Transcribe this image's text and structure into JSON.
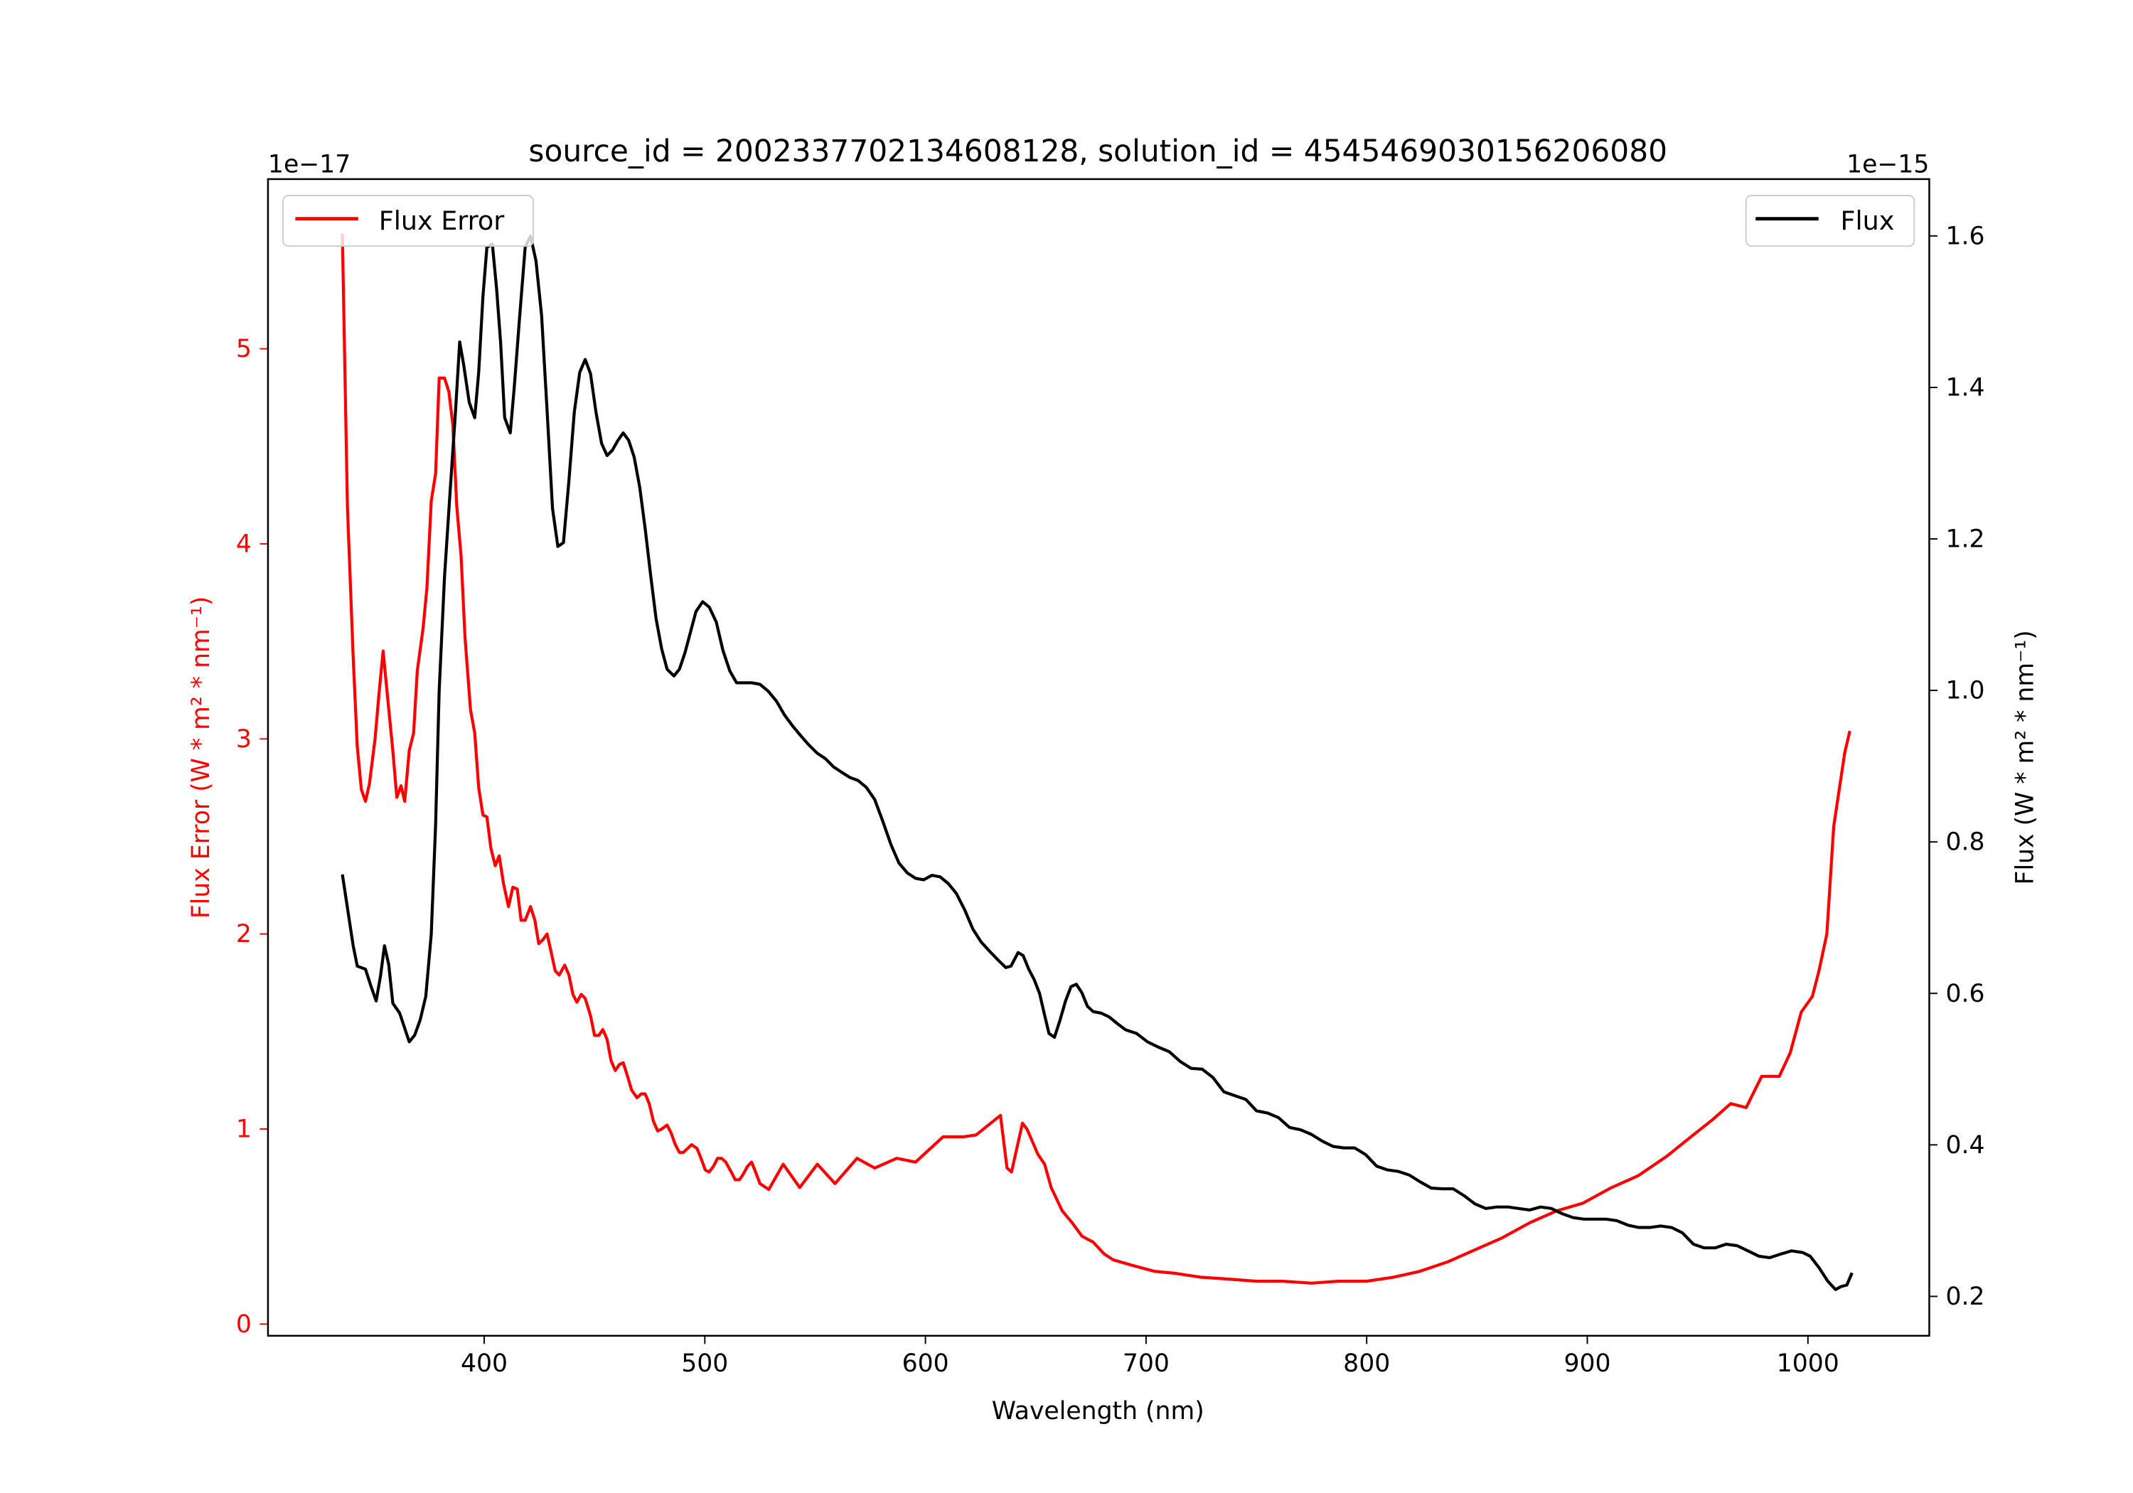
{
  "chart_data": {
    "type": "line",
    "title": "source_id = 2002337702134608128, solution_id = 4545469030156206080",
    "xlabel": "Wavelength (nm)",
    "ylabel_left": "Flux Error (W * m² * nm⁻¹)",
    "ylabel_right": "Flux (W * m² * nm⁻¹)",
    "left_offset": "1e−17",
    "right_offset": "1e−15",
    "xlim": [
      302,
      1055
    ],
    "ylim_left": [
      -0.06,
      5.87
    ],
    "ylim_right": [
      0.148,
      1.675
    ],
    "xticks": [
      400,
      500,
      600,
      700,
      800,
      900,
      1000
    ],
    "yticks_left": [
      0,
      1,
      2,
      3,
      4,
      5
    ],
    "yticks_right": [
      0.2,
      0.4,
      0.6,
      0.8,
      1.0,
      1.2,
      1.4,
      1.6
    ],
    "colors": {
      "error": "#ff0000",
      "flux": "#000000"
    },
    "series": [
      {
        "name": "Flux Error",
        "axis": "left",
        "legend": "top-left",
        "x": [
          335.7,
          338,
          340.6,
          342.5,
          344.3,
          346.2,
          348,
          350.5,
          352.4,
          354.2,
          356,
          358.6,
          360.4,
          362.3,
          364,
          366,
          368,
          369.7,
          372.2,
          374,
          376,
          378,
          379.6,
          382,
          384,
          385.8,
          387.6,
          389.5,
          391.3,
          393.8,
          395.7,
          397.5,
          399.4,
          401.2,
          403,
          405,
          406.8,
          408.7,
          411,
          413,
          415,
          416.7,
          418.6,
          421,
          423,
          424.7,
          426.6,
          428.5,
          430.3,
          432.2,
          434,
          436.5,
          438.4,
          440.2,
          442,
          444,
          445.8,
          448.2,
          450,
          452,
          453.8,
          455.7,
          457.5,
          459.4,
          461.2,
          463,
          465,
          466.8,
          469.3,
          471.1,
          473,
          474.8,
          476.7,
          478.6,
          480.4,
          482.9,
          484.7,
          486.6,
          488.5,
          490.3,
          492.2,
          494,
          496.5,
          498.3,
          500.2,
          502,
          504,
          505.8,
          507.6,
          509.5,
          512,
          513.8,
          515.7,
          517.5,
          519.4,
          521.2,
          523,
          525,
          529,
          535.5,
          543,
          551,
          559,
          569,
          577,
          587,
          595.5,
          608,
          617,
          623,
          634,
          637,
          639,
          644,
          646,
          651,
          654,
          657,
          662,
          666.5,
          671,
          676,
          681,
          685,
          694,
          704,
          713,
          725,
          738,
          750,
          762,
          775,
          787,
          800,
          812,
          824,
          837,
          849,
          861,
          874,
          886,
          898,
          911,
          923,
          936,
          948,
          957,
          965,
          972,
          979,
          987,
          992,
          997,
          1002,
          1005,
          1008.6,
          1011.7,
          1016.7,
          1019
        ],
        "y": [
          5.59,
          4.19,
          3.42,
          2.96,
          2.74,
          2.68,
          2.77,
          3.0,
          3.24,
          3.45,
          3.24,
          2.94,
          2.7,
          2.76,
          2.68,
          2.94,
          3.03,
          3.35,
          3.56,
          3.77,
          4.22,
          4.36,
          4.85,
          4.85,
          4.78,
          4.61,
          4.19,
          3.94,
          3.52,
          3.15,
          3.03,
          2.75,
          2.61,
          2.6,
          2.44,
          2.35,
          2.4,
          2.26,
          2.14,
          2.24,
          2.23,
          2.07,
          2.07,
          2.14,
          2.07,
          1.95,
          1.97,
          2.0,
          1.91,
          1.81,
          1.79,
          1.84,
          1.79,
          1.69,
          1.65,
          1.69,
          1.67,
          1.58,
          1.48,
          1.48,
          1.51,
          1.46,
          1.35,
          1.3,
          1.33,
          1.34,
          1.27,
          1.2,
          1.16,
          1.18,
          1.18,
          1.13,
          1.04,
          0.99,
          1.0,
          1.02,
          0.98,
          0.92,
          0.88,
          0.88,
          0.9,
          0.92,
          0.9,
          0.85,
          0.79,
          0.78,
          0.81,
          0.85,
          0.85,
          0.83,
          0.78,
          0.74,
          0.74,
          0.77,
          0.81,
          0.83,
          0.78,
          0.72,
          0.69,
          0.82,
          0.7,
          0.82,
          0.72,
          0.85,
          0.8,
          0.85,
          0.83,
          0.96,
          0.96,
          0.97,
          1.07,
          0.8,
          0.78,
          1.03,
          1.0,
          0.87,
          0.82,
          0.7,
          0.58,
          0.52,
          0.45,
          0.42,
          0.36,
          0.33,
          0.3,
          0.27,
          0.26,
          0.24,
          0.23,
          0.22,
          0.22,
          0.21,
          0.22,
          0.22,
          0.24,
          0.27,
          0.32,
          0.38,
          0.44,
          0.52,
          0.58,
          0.62,
          0.7,
          0.76,
          0.86,
          0.97,
          1.05,
          1.13,
          1.11,
          1.27,
          1.27,
          1.39,
          1.6,
          1.68,
          1.81,
          2.0,
          2.55,
          2.93,
          3.04
        ]
      },
      {
        "name": "Flux",
        "axis": "right",
        "legend": "top-right",
        "x": [
          335.7,
          340.6,
          342.5,
          346.2,
          348.7,
          351,
          353,
          354.8,
          356.7,
          358.6,
          361.7,
          364,
          366,
          368.5,
          371,
          373.5,
          376,
          378,
          379.6,
          382,
          384.5,
          387,
          388.9,
          390.7,
          393.2,
          395.7,
          397.5,
          399.4,
          401.2,
          403.7,
          405.6,
          407.4,
          409.3,
          411.8,
          413.6,
          416,
          418.6,
          421,
          423.5,
          426,
          428.5,
          431,
          433.4,
          435.9,
          438.4,
          440.8,
          443.3,
          445.8,
          448.2,
          450.7,
          453.2,
          455.7,
          458.1,
          460.6,
          463,
          465.5,
          468,
          470.5,
          473,
          475.5,
          477.9,
          480.4,
          482.9,
          486,
          488.5,
          491,
          493.5,
          496,
          499,
          502,
          505.2,
          508.2,
          511.3,
          514.4,
          517.5,
          521.2,
          525,
          528.7,
          532.4,
          536,
          539.8,
          543.5,
          547.2,
          551,
          554.6,
          558.3,
          562,
          565.8,
          569.5,
          573.2,
          577,
          580.6,
          584.4,
          588,
          591.8,
          595.5,
          599.2,
          603,
          606.6,
          610.3,
          614,
          617.8,
          621.5,
          625.2,
          629,
          632.6,
          636.4,
          638.8,
          642,
          644.3,
          646.8,
          649.3,
          651.7,
          654.2,
          656,
          658.5,
          661,
          663.5,
          666,
          668.4,
          670.9,
          673.4,
          676,
          679.6,
          683.3,
          687,
          690.7,
          695.7,
          700.6,
          705.6,
          710.5,
          715.5,
          720.4,
          725.4,
          730.3,
          735.3,
          740.2,
          745.2,
          750.1,
          755.1,
          760,
          765,
          770,
          774.8,
          779.8,
          784.7,
          789.7,
          794.6,
          799.6,
          804.5,
          809.5,
          814.4,
          819.4,
          824.3,
          829.3,
          834.2,
          839.2,
          844.1,
          849.1,
          854,
          859,
          864,
          868.9,
          873.8,
          878.8,
          883.7,
          888.7,
          893.6,
          898.6,
          903.5,
          908.5,
          913.4,
          918.4,
          923.3,
          928.3,
          933.2,
          938.2,
          943.1,
          948.1,
          953,
          958,
          962.9,
          967.9,
          972.8,
          977.8,
          982.7,
          987.7,
          992.6,
          997.6,
          1001,
          1005,
          1009,
          1012.5,
          1015,
          1017.6,
          1020
        ],
        "y": [
          0.757,
          0.663,
          0.636,
          0.632,
          0.609,
          0.59,
          0.623,
          0.663,
          0.638,
          0.587,
          0.574,
          0.554,
          0.536,
          0.545,
          0.565,
          0.596,
          0.678,
          0.823,
          1.0,
          1.15,
          1.26,
          1.37,
          1.46,
          1.43,
          1.38,
          1.36,
          1.42,
          1.52,
          1.585,
          1.589,
          1.53,
          1.46,
          1.36,
          1.34,
          1.4,
          1.49,
          1.585,
          1.6,
          1.567,
          1.495,
          1.37,
          1.24,
          1.19,
          1.195,
          1.277,
          1.367,
          1.42,
          1.437,
          1.418,
          1.367,
          1.326,
          1.31,
          1.317,
          1.33,
          1.34,
          1.33,
          1.308,
          1.268,
          1.213,
          1.15,
          1.095,
          1.055,
          1.028,
          1.019,
          1.028,
          1.05,
          1.077,
          1.104,
          1.117,
          1.11,
          1.09,
          1.053,
          1.026,
          1.01,
          1.01,
          1.01,
          1.008,
          0.999,
          0.986,
          0.968,
          0.953,
          0.94,
          0.928,
          0.917,
          0.91,
          0.899,
          0.892,
          0.885,
          0.881,
          0.872,
          0.856,
          0.828,
          0.796,
          0.772,
          0.759,
          0.752,
          0.75,
          0.756,
          0.754,
          0.745,
          0.732,
          0.71,
          0.685,
          0.668,
          0.656,
          0.645,
          0.634,
          0.636,
          0.654,
          0.65,
          0.632,
          0.618,
          0.6,
          0.569,
          0.547,
          0.542,
          0.565,
          0.59,
          0.609,
          0.612,
          0.601,
          0.583,
          0.576,
          0.574,
          0.569,
          0.56,
          0.552,
          0.547,
          0.536,
          0.529,
          0.523,
          0.51,
          0.501,
          0.5,
          0.489,
          0.47,
          0.465,
          0.46,
          0.445,
          0.442,
          0.436,
          0.423,
          0.42,
          0.414,
          0.405,
          0.398,
          0.396,
          0.396,
          0.387,
          0.372,
          0.367,
          0.365,
          0.36,
          0.351,
          0.343,
          0.342,
          0.342,
          0.333,
          0.322,
          0.316,
          0.318,
          0.318,
          0.316,
          0.314,
          0.318,
          0.316,
          0.309,
          0.304,
          0.302,
          0.302,
          0.302,
          0.3,
          0.294,
          0.291,
          0.291,
          0.293,
          0.291,
          0.284,
          0.269,
          0.264,
          0.264,
          0.269,
          0.267,
          0.26,
          0.253,
          0.251,
          0.256,
          0.26,
          0.258,
          0.253,
          0.238,
          0.22,
          0.209,
          0.213,
          0.215,
          0.231
        ]
      }
    ]
  }
}
